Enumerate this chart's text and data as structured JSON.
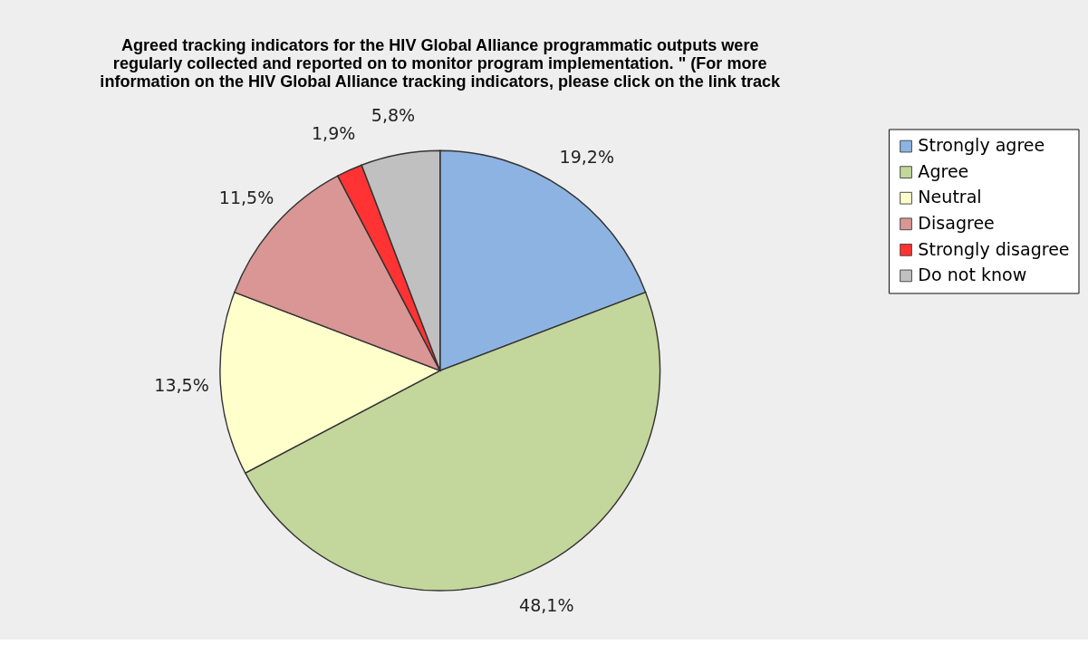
{
  "chart_data": {
    "type": "pie",
    "title": "Agreed tracking indicators for the HIV Global Alliance programmatic outputs were\nregularly collected and reported on to monitor program implementation. \" (For more\ninformation on the HIV Global Alliance tracking indicators, please click on the link track",
    "categories": [
      "Strongly agree",
      "Agree",
      "Neutral",
      "Disagree",
      "Strongly disagree",
      "Do not know"
    ],
    "values": [
      19.2,
      48.1,
      13.5,
      11.5,
      1.9,
      5.8
    ],
    "value_labels": [
      "19,2%",
      "48,1%",
      "13,5%",
      "11,5%",
      "1,9%",
      "5,8%"
    ],
    "colors": [
      "#8db3e2",
      "#c3d69b",
      "#ffffcc",
      "#d99694",
      "#ff3333",
      "#c0c0c0"
    ],
    "legend": "right"
  }
}
